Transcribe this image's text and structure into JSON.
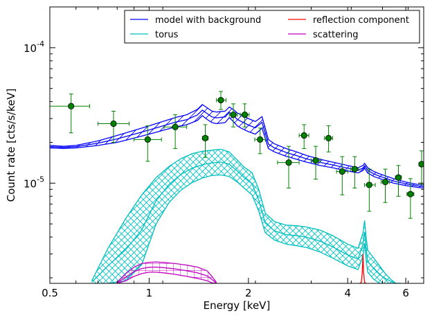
{
  "chart_data": {
    "type": "line",
    "title": "",
    "xlabel": "Energy [keV]",
    "ylabel": "Count rate [cts/s/keV]",
    "x_scale": "log",
    "y_scale": "log",
    "xlim": [
      0.5,
      6.8
    ],
    "ylim": [
      1.82e-06,
      0.0002
    ],
    "grid": false,
    "legend_position": "top-right",
    "x_ticks": [
      {
        "value": 0.5,
        "label": "0.5"
      },
      {
        "value": 1,
        "label": "1"
      },
      {
        "value": 2,
        "label": "2"
      },
      {
        "value": 4,
        "label": "4"
      },
      {
        "value": 6,
        "label": "6"
      }
    ],
    "y_ticks": [
      {
        "value": 1e-05,
        "base": "10",
        "exp": "-5"
      },
      {
        "value": 0.0001,
        "base": "10",
        "exp": "-4"
      }
    ],
    "legend": [
      {
        "name": "model with background",
        "color": "#0000ff"
      },
      {
        "name": "reflection component",
        "color": "#ff0000"
      },
      {
        "name": "torus",
        "color": "#00bfbf"
      },
      {
        "name": "scattering",
        "color": "#bf00bf"
      }
    ],
    "series": [
      {
        "name": "model with background",
        "color": "#0000ff",
        "kind": "band",
        "hatch": "diagonal",
        "x": [
          0.5,
          0.55,
          0.6,
          0.7,
          0.8,
          0.9,
          1.0,
          1.1,
          1.2,
          1.3,
          1.4,
          1.45,
          1.5,
          1.55,
          1.6,
          1.7,
          1.75,
          1.8,
          1.85,
          1.9,
          2.0,
          2.1,
          2.2,
          2.3,
          2.4,
          2.6,
          2.8,
          3.0,
          3.3,
          3.6,
          4.0,
          4.3,
          4.45,
          4.5,
          4.55,
          4.6,
          4.8,
          5.0,
          5.5,
          6.0,
          6.5,
          6.8
        ],
        "upper": [
          1.9e-05,
          1.87e-05,
          1.9e-05,
          2.05e-05,
          2.25e-05,
          2.45e-05,
          2.65e-05,
          2.85e-05,
          3.05e-05,
          3.2e-05,
          3.5e-05,
          3.8e-05,
          3.6e-05,
          3.4e-05,
          3.35e-05,
          3.4e-05,
          3.65e-05,
          3.5e-05,
          3.3e-05,
          3.2e-05,
          3e-05,
          2.85e-05,
          3.1e-05,
          2.1e-05,
          1.95e-05,
          1.8e-05,
          1.7e-05,
          1.6e-05,
          1.5e-05,
          1.43e-05,
          1.35e-05,
          1.3e-05,
          1.35e-05,
          1.4e-05,
          1.35e-05,
          1.3e-05,
          1.22e-05,
          1.17e-05,
          1.08e-05,
          1.02e-05,
          9.8e-06,
          9.7e-06
        ],
        "lower": [
          1.82e-05,
          1.8e-05,
          1.82e-05,
          1.9e-05,
          2e-05,
          2.15e-05,
          2.3e-05,
          2.45e-05,
          2.6e-05,
          2.7e-05,
          2.9e-05,
          3.15e-05,
          2.95e-05,
          2.8e-05,
          2.75e-05,
          2.8e-05,
          3.05e-05,
          2.85e-05,
          2.65e-05,
          2.55e-05,
          2.4e-05,
          2.3e-05,
          2.55e-05,
          1.8e-05,
          1.7e-05,
          1.58e-05,
          1.5e-05,
          1.43e-05,
          1.35e-05,
          1.3e-05,
          1.23e-05,
          1.19e-05,
          1.24e-05,
          1.29e-05,
          1.24e-05,
          1.19e-05,
          1.12e-05,
          1.08e-05,
          1e-05,
          9.6e-06,
          9.3e-06,
          9.2e-06
        ]
      },
      {
        "name": "torus",
        "color": "#00bfbf",
        "kind": "band",
        "hatch": "cross",
        "x": [
          0.67,
          0.75,
          0.85,
          0.95,
          1.05,
          1.15,
          1.25,
          1.35,
          1.45,
          1.55,
          1.65,
          1.75,
          1.85,
          1.95,
          2.05,
          2.15,
          2.25,
          2.4,
          2.6,
          2.8,
          3.0,
          3.3,
          3.6,
          4.0,
          4.3,
          4.45,
          4.5,
          4.55,
          4.6,
          4.8,
          5.0,
          5.2,
          5.4,
          5.6,
          5.8
        ],
        "upper": [
          1.9e-06,
          3.3e-06,
          5.5e-06,
          8.2e-06,
          1.1e-05,
          1.33e-05,
          1.52e-05,
          1.65e-05,
          1.72e-05,
          1.75e-05,
          1.78e-05,
          1.7e-05,
          1.48e-05,
          1.3e-05,
          1.2e-05,
          9e-06,
          6e-06,
          5.2e-06,
          4.9e-06,
          4.85e-06,
          4.75e-06,
          4.5e-06,
          4.1e-06,
          3.55e-06,
          3.3e-06,
          4.3e-06,
          5.3e-06,
          4e-06,
          3.2e-06,
          2.8e-06,
          2.45e-06,
          2.15e-06,
          1.95e-06,
          1.82e-06,
          1.82e-06
        ],
        "lower": [
          1.82e-06,
          1.82e-06,
          1.9e-06,
          2.5e-06,
          5e-06,
          7.2e-06,
          8.9e-06,
          1.01e-05,
          1.09e-05,
          1.14e-05,
          1.15e-05,
          1.12e-05,
          1.02e-05,
          9.1e-06,
          8.2e-06,
          6.2e-06,
          4.3e-06,
          3.8e-06,
          3.55e-06,
          3.45e-06,
          3.35e-06,
          3.1e-06,
          2.8e-06,
          2.45e-06,
          2.3e-06,
          2.9e-06,
          3.6e-06,
          2.7e-06,
          2.2e-06,
          1.95e-06,
          1.82e-06,
          1.82e-06,
          1.82e-06,
          1.82e-06,
          1.82e-06
        ]
      },
      {
        "name": "scattering",
        "color": "#bf00bf",
        "kind": "band",
        "hatch": "grid",
        "x": [
          0.8,
          0.85,
          0.9,
          0.95,
          1.0,
          1.05,
          1.1,
          1.2,
          1.3,
          1.4,
          1.5,
          1.55,
          1.6
        ],
        "upper": [
          1.85e-06,
          2.15e-06,
          2.4e-06,
          2.55e-06,
          2.6e-06,
          2.62e-06,
          2.6e-06,
          2.55e-06,
          2.48e-06,
          2.4e-06,
          2.25e-06,
          2.05e-06,
          1.85e-06
        ],
        "lower": [
          1.82e-06,
          1.9e-06,
          2.05e-06,
          2.15e-06,
          2.2e-06,
          2.2e-06,
          2.18e-06,
          2.12e-06,
          2.05e-06,
          1.98e-06,
          1.9e-06,
          1.84e-06,
          1.82e-06
        ]
      },
      {
        "name": "reflection component",
        "color": "#ff0000",
        "kind": "line",
        "x": [
          4.35,
          4.4,
          4.43,
          4.45,
          4.47,
          4.5,
          4.55
        ],
        "y": [
          1.82e-06,
          1.85e-06,
          2.2e-06,
          3e-06,
          2.2e-06,
          1.85e-06,
          1.82e-06
        ]
      },
      {
        "name": "data",
        "color": "#008000",
        "kind": "errorbar",
        "points": [
          {
            "x": 0.58,
            "y": 3.7e-05,
            "xerr": [
              0.08,
              0.08
            ],
            "yerr": [
              1.35e-05,
              8.5e-06
            ]
          },
          {
            "x": 0.78,
            "y": 2.75e-05,
            "xerr": [
              0.08,
              0.09
            ],
            "yerr": [
              7.5e-06,
              6.5e-06
            ]
          },
          {
            "x": 0.99,
            "y": 2.1e-05,
            "xerr": [
              0.09,
              0.1
            ],
            "yerr": [
              6.5e-06,
              5.5e-06
            ]
          },
          {
            "x": 1.2,
            "y": 2.6e-05,
            "xerr": [
              0.09,
              0.1
            ],
            "yerr": [
              8e-06,
              6e-06
            ]
          },
          {
            "x": 1.48,
            "y": 2.15e-05,
            "xerr": [
              0.03,
              0.03
            ],
            "yerr": [
              6e-06,
              5.5e-06
            ]
          },
          {
            "x": 1.65,
            "y": 4.1e-05,
            "xerr": [
              0.05,
              0.06
            ],
            "yerr": [
              6e-06,
              6.5e-06
            ]
          },
          {
            "x": 1.8,
            "y": 3.2e-05,
            "xerr": [
              0.05,
              0.05
            ],
            "yerr": [
              6e-06,
              6.5e-06
            ]
          },
          {
            "x": 1.95,
            "y": 3.2e-05,
            "xerr": [
              0.06,
              0.06
            ],
            "yerr": [
              6e-06,
              6.5e-06
            ]
          },
          {
            "x": 2.17,
            "y": 2.1e-05,
            "xerr": [
              0.08,
              0.08
            ],
            "yerr": [
              4.5e-06,
              4.5e-06
            ]
          },
          {
            "x": 2.65,
            "y": 1.42e-05,
            "xerr": [
              0.2,
              0.2
            ],
            "yerr": [
              5e-06,
              4.5e-06
            ]
          },
          {
            "x": 2.95,
            "y": 2.25e-05,
            "xerr": [
              0.1,
              0.1
            ],
            "yerr": [
              4.5e-06,
              4.5e-06
            ]
          },
          {
            "x": 3.2,
            "y": 1.47e-05,
            "xerr": [
              0.1,
              0.1
            ],
            "yerr": [
              4e-06,
              4e-06
            ]
          },
          {
            "x": 3.5,
            "y": 2.15e-05,
            "xerr": [
              0.1,
              0.1
            ],
            "yerr": [
              4.5e-06,
              5e-06
            ]
          },
          {
            "x": 3.85,
            "y": 1.22e-05,
            "xerr": [
              0.15,
              0.15
            ],
            "yerr": [
              4e-06,
              3.5e-06
            ]
          },
          {
            "x": 4.2,
            "y": 1.27e-05,
            "xerr": [
              0.12,
              0.12
            ],
            "yerr": [
              3.5e-06,
              3e-06
            ]
          },
          {
            "x": 4.65,
            "y": 9.7e-06,
            "xerr": [
              0.15,
              0.2
            ],
            "yerr": [
              3.5e-06,
              3e-06
            ]
          },
          {
            "x": 5.2,
            "y": 1.02e-05,
            "xerr": [
              0.15,
              0.15
            ],
            "yerr": [
              3e-06,
              2.5e-06
            ]
          },
          {
            "x": 5.7,
            "y": 1.1e-05,
            "xerr": [
              0.12,
              0.12
            ],
            "yerr": [
              3e-06,
              2.5e-06
            ]
          },
          {
            "x": 6.2,
            "y": 8.3e-06,
            "xerr": [
              0.15,
              0.15
            ],
            "yerr": [
              2.8e-06,
              2.5e-06
            ]
          },
          {
            "x": 6.7,
            "y": 1.38e-05,
            "xerr": [
              0.12,
              0.12
            ],
            "yerr": [
              4e-06,
              3.5e-06
            ]
          }
        ]
      }
    ]
  }
}
